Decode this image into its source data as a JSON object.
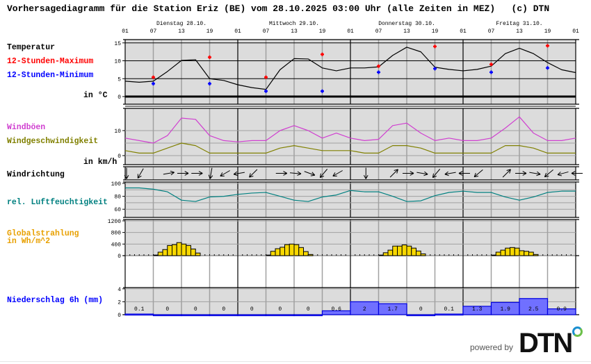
{
  "title": "Vorhersagediagramm für die Station Eriz (BE) vom 28.10.2025 03:00 Uhr (alle Zeiten in MEZ)   (c) DTN",
  "days": [
    {
      "date": "28.10",
      "label": "Dienstag 28.10."
    },
    {
      "date": "29.10",
      "label": "Mittwoch 29.10."
    },
    {
      "date": "30.10",
      "label": "Donnerstag 30.10."
    },
    {
      "date": "31.10",
      "label": "Freitag 31.10."
    },
    {
      "date": "01.11",
      "label": ""
    }
  ],
  "hour_ticks": [
    "01",
    "07",
    "13",
    "19"
  ],
  "labels": {
    "temperature": "Temperatur",
    "max": "12-Stunden-Maximum",
    "min": "12-Stunden-Minimum",
    "temp_unit": "in °C",
    "gusts": "Windböen",
    "wind_speed": "Windgeschwindigkeit",
    "wind_unit": "in km/h",
    "wind_dir": "Windrichtung",
    "humidity": "rel. Luftfeuchtigkeit",
    "radiation": "Globalstrahlung",
    "radiation_unit": "in Wh/m^2",
    "precip": "Niederschlag 6h (mm)"
  },
  "colors": {
    "panel_bg": "#dcdcdc",
    "temperature": "#000000",
    "max": "#ff0000",
    "min": "#0000ff",
    "gusts": "#d040d0",
    "wind_speed": "#808000",
    "humidity": "#008080",
    "radiation_label": "#e8a000",
    "radiation_fill": "#f8d800",
    "precip_fill": "#7070ff",
    "precip_stroke": "#0000e0",
    "precip_label": "#0000ff"
  },
  "footer": {
    "powered_by": "powered by",
    "brand": "DTN"
  },
  "chart_data": [
    {
      "type": "line",
      "name": "temperature",
      "ylabel": "in °C",
      "yticks": [
        0,
        5,
        10,
        15
      ],
      "ylim": [
        -2.5,
        16.5
      ],
      "times": [
        "28.10 01",
        "28.10 04",
        "28.10 07",
        "28.10 10",
        "28.10 13",
        "28.10 16",
        "28.10 19",
        "28.10 22",
        "29.10 01",
        "29.10 04",
        "29.10 07",
        "29.10 10",
        "29.10 13",
        "29.10 16",
        "29.10 19",
        "29.10 22",
        "30.10 01",
        "30.10 04",
        "30.10 07",
        "30.10 10",
        "30.10 13",
        "30.10 16",
        "30.10 19",
        "30.10 22",
        "31.10 01",
        "31.10 04",
        "31.10 07",
        "31.10 10",
        "31.10 13",
        "31.10 16",
        "31.10 19",
        "31.10 22",
        "01.11 01"
      ],
      "values": [
        4.3,
        4.0,
        4.3,
        7.0,
        10.1,
        10.3,
        5.0,
        4.5,
        3.3,
        2.5,
        2.0,
        7.5,
        10.6,
        10.5,
        8.0,
        7.2,
        8.0,
        8.0,
        8.3,
        11.5,
        13.8,
        12.5,
        8.2,
        7.6,
        7.2,
        7.6,
        8.5,
        12.0,
        13.5,
        12.0,
        9.5,
        7.5,
        6.7
      ],
      "max": {
        "times": [
          "28.10 07",
          "28.10 19",
          "29.10 07",
          "29.10 19",
          "30.10 07",
          "30.10 19",
          "31.10 07",
          "31.10 19"
        ],
        "values": [
          5.4,
          11.0,
          5.4,
          11.8,
          8.5,
          14.0,
          9.0,
          14.2
        ]
      },
      "min": {
        "times": [
          "28.10 07",
          "28.10 19",
          "29.10 07",
          "29.10 19",
          "30.10 07",
          "30.10 19",
          "31.10 07",
          "31.10 19"
        ],
        "values": [
          3.6,
          3.6,
          1.5,
          1.5,
          6.8,
          7.8,
          6.8,
          8.0
        ]
      }
    },
    {
      "type": "line",
      "name": "wind",
      "ylabel": "in km/h",
      "yticks": [
        0,
        10
      ],
      "ylim": [
        -3.5,
        20
      ],
      "series": [
        {
          "name": "Windböen",
          "values": [
            7,
            6,
            5,
            8,
            15,
            14.5,
            8,
            6,
            5.5,
            6,
            6,
            10,
            12,
            10,
            7,
            9,
            7,
            6,
            6.5,
            12,
            13,
            9,
            6,
            7,
            6,
            6,
            7,
            11,
            15.5,
            9,
            6,
            6,
            7
          ]
        },
        {
          "name": "Windgeschwindigkeit",
          "values": [
            2,
            1,
            1,
            3,
            5,
            4,
            1,
            1,
            1,
            1,
            1,
            3,
            4,
            3,
            2,
            2,
            2,
            1,
            1,
            4,
            4,
            3,
            1,
            1,
            1,
            1,
            1,
            4,
            4,
            3,
            1,
            1,
            1
          ]
        }
      ]
    },
    {
      "type": "arrows",
      "name": "wind_direction",
      "points": [
        {
          "time": "28.10 01",
          "deg": 180
        },
        {
          "time": "28.10 04",
          "deg": 210
        },
        {
          "time": "28.10 10",
          "deg": 80
        },
        {
          "time": "28.10 13",
          "deg": 90
        },
        {
          "time": "28.10 16",
          "deg": 90
        },
        {
          "time": "28.10 19",
          "deg": 190
        },
        {
          "time": "28.10 22",
          "deg": 240
        },
        {
          "time": "29.10 01",
          "deg": 260
        },
        {
          "time": "29.10 04",
          "deg": 225
        },
        {
          "time": "29.10 10",
          "deg": 90
        },
        {
          "time": "29.10 13",
          "deg": 95
        },
        {
          "time": "29.10 16",
          "deg": 110
        },
        {
          "time": "29.10 19",
          "deg": 220
        },
        {
          "time": "29.10 22",
          "deg": 240
        },
        {
          "time": "30.10 04",
          "deg": 180
        },
        {
          "time": "30.10 10",
          "deg": 45
        },
        {
          "time": "30.10 13",
          "deg": 90
        },
        {
          "time": "30.10 16",
          "deg": 100
        },
        {
          "time": "30.10 19",
          "deg": 220
        },
        {
          "time": "30.10 22",
          "deg": 260
        },
        {
          "time": "31.10 01",
          "deg": 270
        },
        {
          "time": "31.10 04",
          "deg": 230
        },
        {
          "time": "31.10 10",
          "deg": 45
        },
        {
          "time": "31.10 13",
          "deg": 90
        },
        {
          "time": "31.10 16",
          "deg": 100
        },
        {
          "time": "31.10 19",
          "deg": 230
        },
        {
          "time": "31.10 22",
          "deg": 255
        },
        {
          "time": "01.11 01",
          "deg": 270
        }
      ]
    },
    {
      "type": "line",
      "name": "humidity",
      "yticks": [
        60,
        80,
        100
      ],
      "ylim": [
        48,
        102
      ],
      "values": [
        93,
        93,
        91,
        87,
        74,
        72,
        79,
        80,
        83,
        85,
        86,
        80,
        74,
        72,
        79,
        82,
        89,
        87,
        87,
        80,
        72,
        73,
        81,
        86,
        88,
        86,
        86,
        79,
        74,
        79,
        86,
        88,
        88
      ]
    },
    {
      "type": "bar",
      "name": "radiation",
      "yticks": [
        0,
        400,
        800,
        1200
      ],
      "ylim": [
        0,
        1200
      ],
      "days": [
        {
          "date": "28.10",
          "first_hour": 8,
          "values": [
            20,
            120,
            210,
            350,
            380,
            450,
            400,
            350,
            230,
            90
          ]
        },
        {
          "date": "29.10",
          "first_hour": 8,
          "values": [
            20,
            150,
            240,
            290,
            380,
            400,
            380,
            280,
            140,
            40
          ]
        },
        {
          "date": "30.10",
          "first_hour": 8,
          "values": [
            20,
            100,
            190,
            330,
            330,
            370,
            330,
            260,
            160,
            60
          ]
        },
        {
          "date": "31.10",
          "first_hour": 8,
          "values": [
            20,
            120,
            190,
            260,
            280,
            260,
            170,
            150,
            120,
            40
          ]
        }
      ]
    },
    {
      "type": "bar",
      "name": "precipitation_6h",
      "yticks": [
        0,
        2,
        4
      ],
      "ylim": [
        0,
        4
      ],
      "periods": [
        "28.10 01",
        "28.10 07",
        "28.10 13",
        "28.10 19",
        "29.10 01",
        "29.10 07",
        "29.10 13",
        "29.10 19",
        "30.10 01",
        "30.10 07",
        "30.10 13",
        "30.10 19",
        "31.10 01",
        "31.10 07",
        "31.10 13",
        "31.10 19"
      ],
      "values": [
        0.1,
        0,
        0,
        0,
        0,
        0,
        0,
        0.6,
        2,
        1.7,
        0,
        0.1,
        1.3,
        1.9,
        2.5,
        0.9
      ],
      "value_labels": [
        "0.1",
        "0",
        "0",
        "0",
        "0",
        "0",
        "0",
        "0.6",
        "2",
        "1.7",
        "0",
        "0.1",
        "1.3",
        "1.9",
        "2.5",
        "0.9"
      ]
    }
  ]
}
